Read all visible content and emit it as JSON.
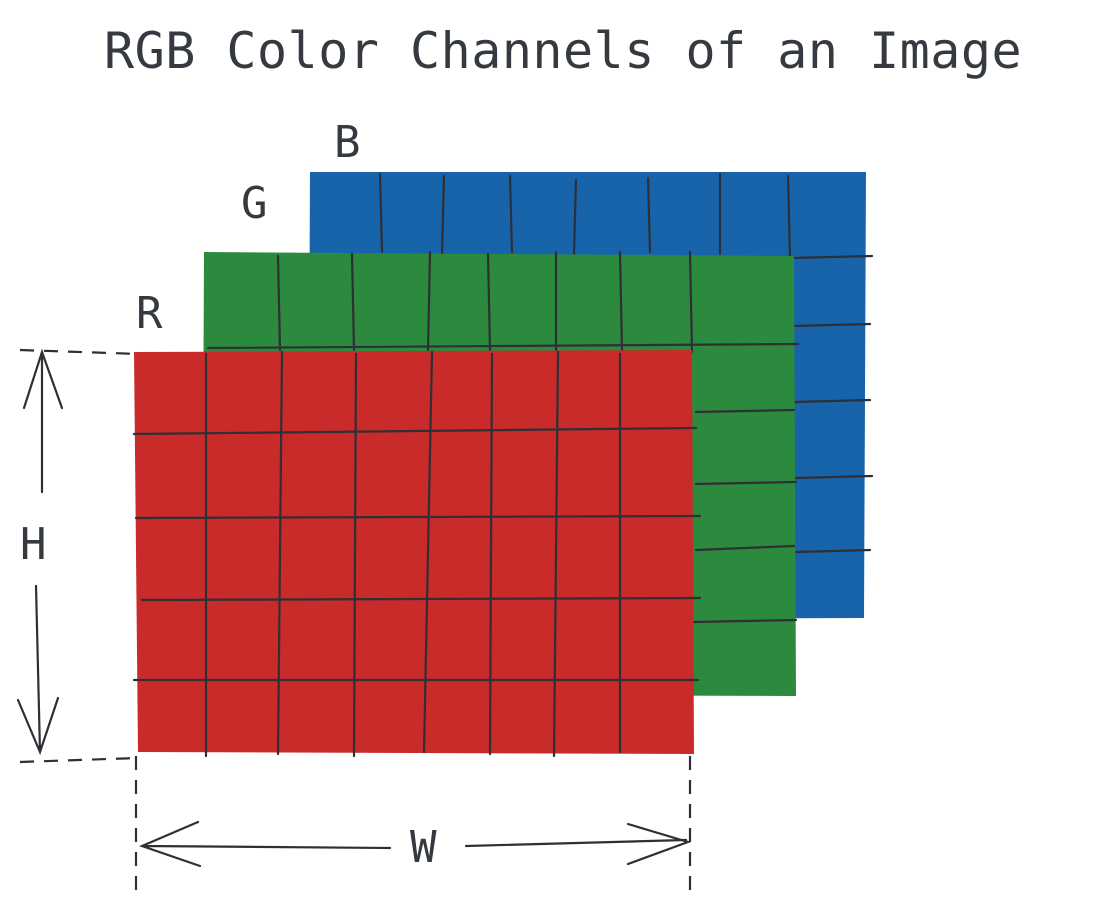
{
  "diagram": {
    "title": "RGB Color Channels of an Image",
    "channels": [
      {
        "label": "B",
        "color": "#1864ab"
      },
      {
        "label": "G",
        "color": "#2b8a3e"
      },
      {
        "label": "R",
        "color": "#c92a2a"
      }
    ],
    "height_label": "H",
    "width_label": "W",
    "line_color": "#2f2f35",
    "text_color": "#343a40"
  }
}
